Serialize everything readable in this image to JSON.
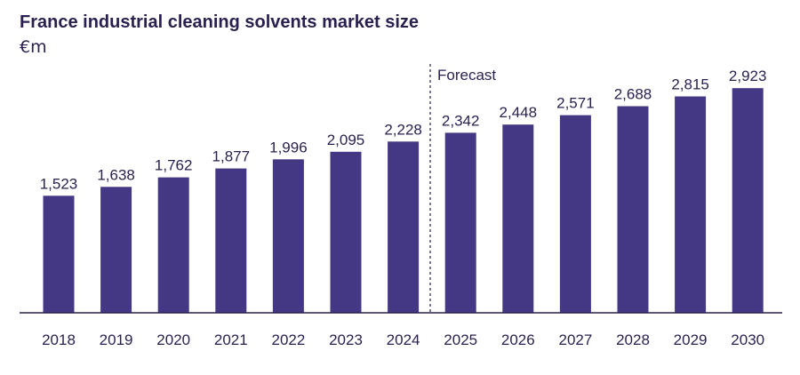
{
  "title": "France industrial cleaning solvents market size",
  "unit": "€m",
  "forecast_label": "Forecast",
  "colors": {
    "bar": "#443784",
    "text": "#2a1f4f",
    "axis": "#2a1f4f"
  },
  "chart_data": {
    "type": "bar",
    "title": "France industrial cleaning solvents market size",
    "ylabel": "€m",
    "xlabel": "",
    "categories": [
      "2018",
      "2019",
      "2020",
      "2021",
      "2022",
      "2023",
      "2024",
      "2025",
      "2026",
      "2027",
      "2028",
      "2029",
      "2030"
    ],
    "values": [
      1523,
      1638,
      1762,
      1877,
      1996,
      2095,
      2228,
      2342,
      2448,
      2571,
      2688,
      2815,
      2923
    ],
    "value_labels": [
      "1,523",
      "1,638",
      "1,762",
      "1,877",
      "1,996",
      "2,095",
      "2,228",
      "2,342",
      "2,448",
      "2,571",
      "2,688",
      "2,815",
      "2,923"
    ],
    "ylim": [
      0,
      3000
    ],
    "forecast_start": "2025",
    "grid": false,
    "legend": "none"
  }
}
